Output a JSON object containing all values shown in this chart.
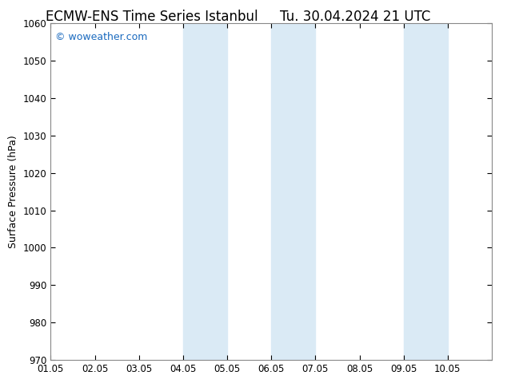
{
  "title_left": "ECMW-ENS Time Series Istanbul",
  "title_right": "Tu. 30.04.2024 21 UTC",
  "ylabel": "Surface Pressure (hPa)",
  "ylim": [
    970,
    1060
  ],
  "yticks": [
    970,
    980,
    990,
    1000,
    1010,
    1020,
    1030,
    1040,
    1050,
    1060
  ],
  "xlim": [
    0,
    10
  ],
  "xtick_positions": [
    0,
    1,
    2,
    3,
    4,
    5,
    6,
    7,
    8,
    9
  ],
  "xtick_labels": [
    "01.05",
    "02.05",
    "03.05",
    "04.05",
    "05.05",
    "06.05",
    "07.05",
    "08.05",
    "09.05",
    "10.05"
  ],
  "shaded_bands": [
    {
      "xmin": 3.0,
      "xmax": 4.0
    },
    {
      "xmin": 5.0,
      "xmax": 6.0
    },
    {
      "xmin": 8.0,
      "xmax": 9.0
    }
  ],
  "band_color": "#daeaf5",
  "watermark": "© woweather.com",
  "watermark_color": "#1a6abf",
  "background_color": "#ffffff",
  "title_fontsize": 12,
  "axis_fontsize": 9,
  "tick_fontsize": 8.5,
  "spine_color": "#888888"
}
